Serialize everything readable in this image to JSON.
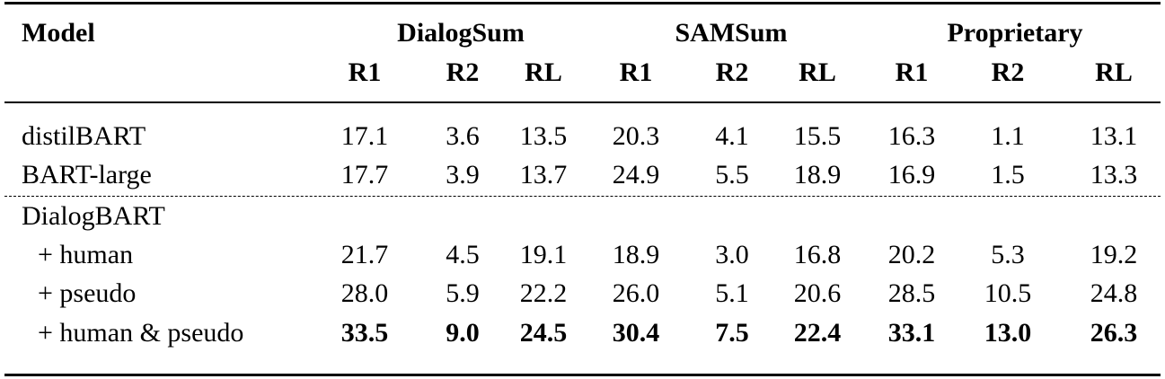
{
  "header": {
    "model_label": "Model",
    "groups": [
      "DialogSum",
      "SAMSum",
      "Proprietary"
    ],
    "metrics": [
      "R1",
      "R2",
      "RL",
      "R1",
      "R2",
      "RL",
      "R1",
      "R2",
      "RL"
    ]
  },
  "rows": [
    {
      "model": "distilBART",
      "values": [
        "17.1",
        "3.6",
        "13.5",
        "20.3",
        "4.1",
        "15.5",
        "16.3",
        "1.1",
        "13.1"
      ],
      "bold": false
    },
    {
      "model": "BART-large",
      "values": [
        "17.7",
        "3.9",
        "13.7",
        "24.9",
        "5.5",
        "18.9",
        "16.9",
        "1.5",
        "13.3"
      ],
      "bold": false
    },
    {
      "model": "DialogBART",
      "values": [],
      "bold": false
    },
    {
      "model": "+ human",
      "values": [
        "21.7",
        "4.5",
        "19.1",
        "18.9",
        "3.0",
        "16.8",
        "20.2",
        "5.3",
        "19.2"
      ],
      "bold": false
    },
    {
      "model": "+ pseudo",
      "values": [
        "28.0",
        "5.9",
        "22.2",
        "26.0",
        "5.1",
        "20.6",
        "28.5",
        "10.5",
        "24.8"
      ],
      "bold": false
    },
    {
      "model": "+ human & pseudo",
      "values": [
        "33.5",
        "9.0",
        "24.5",
        "30.4",
        "7.5",
        "22.4",
        "33.1",
        "13.0",
        "26.3"
      ],
      "bold": true
    }
  ]
}
